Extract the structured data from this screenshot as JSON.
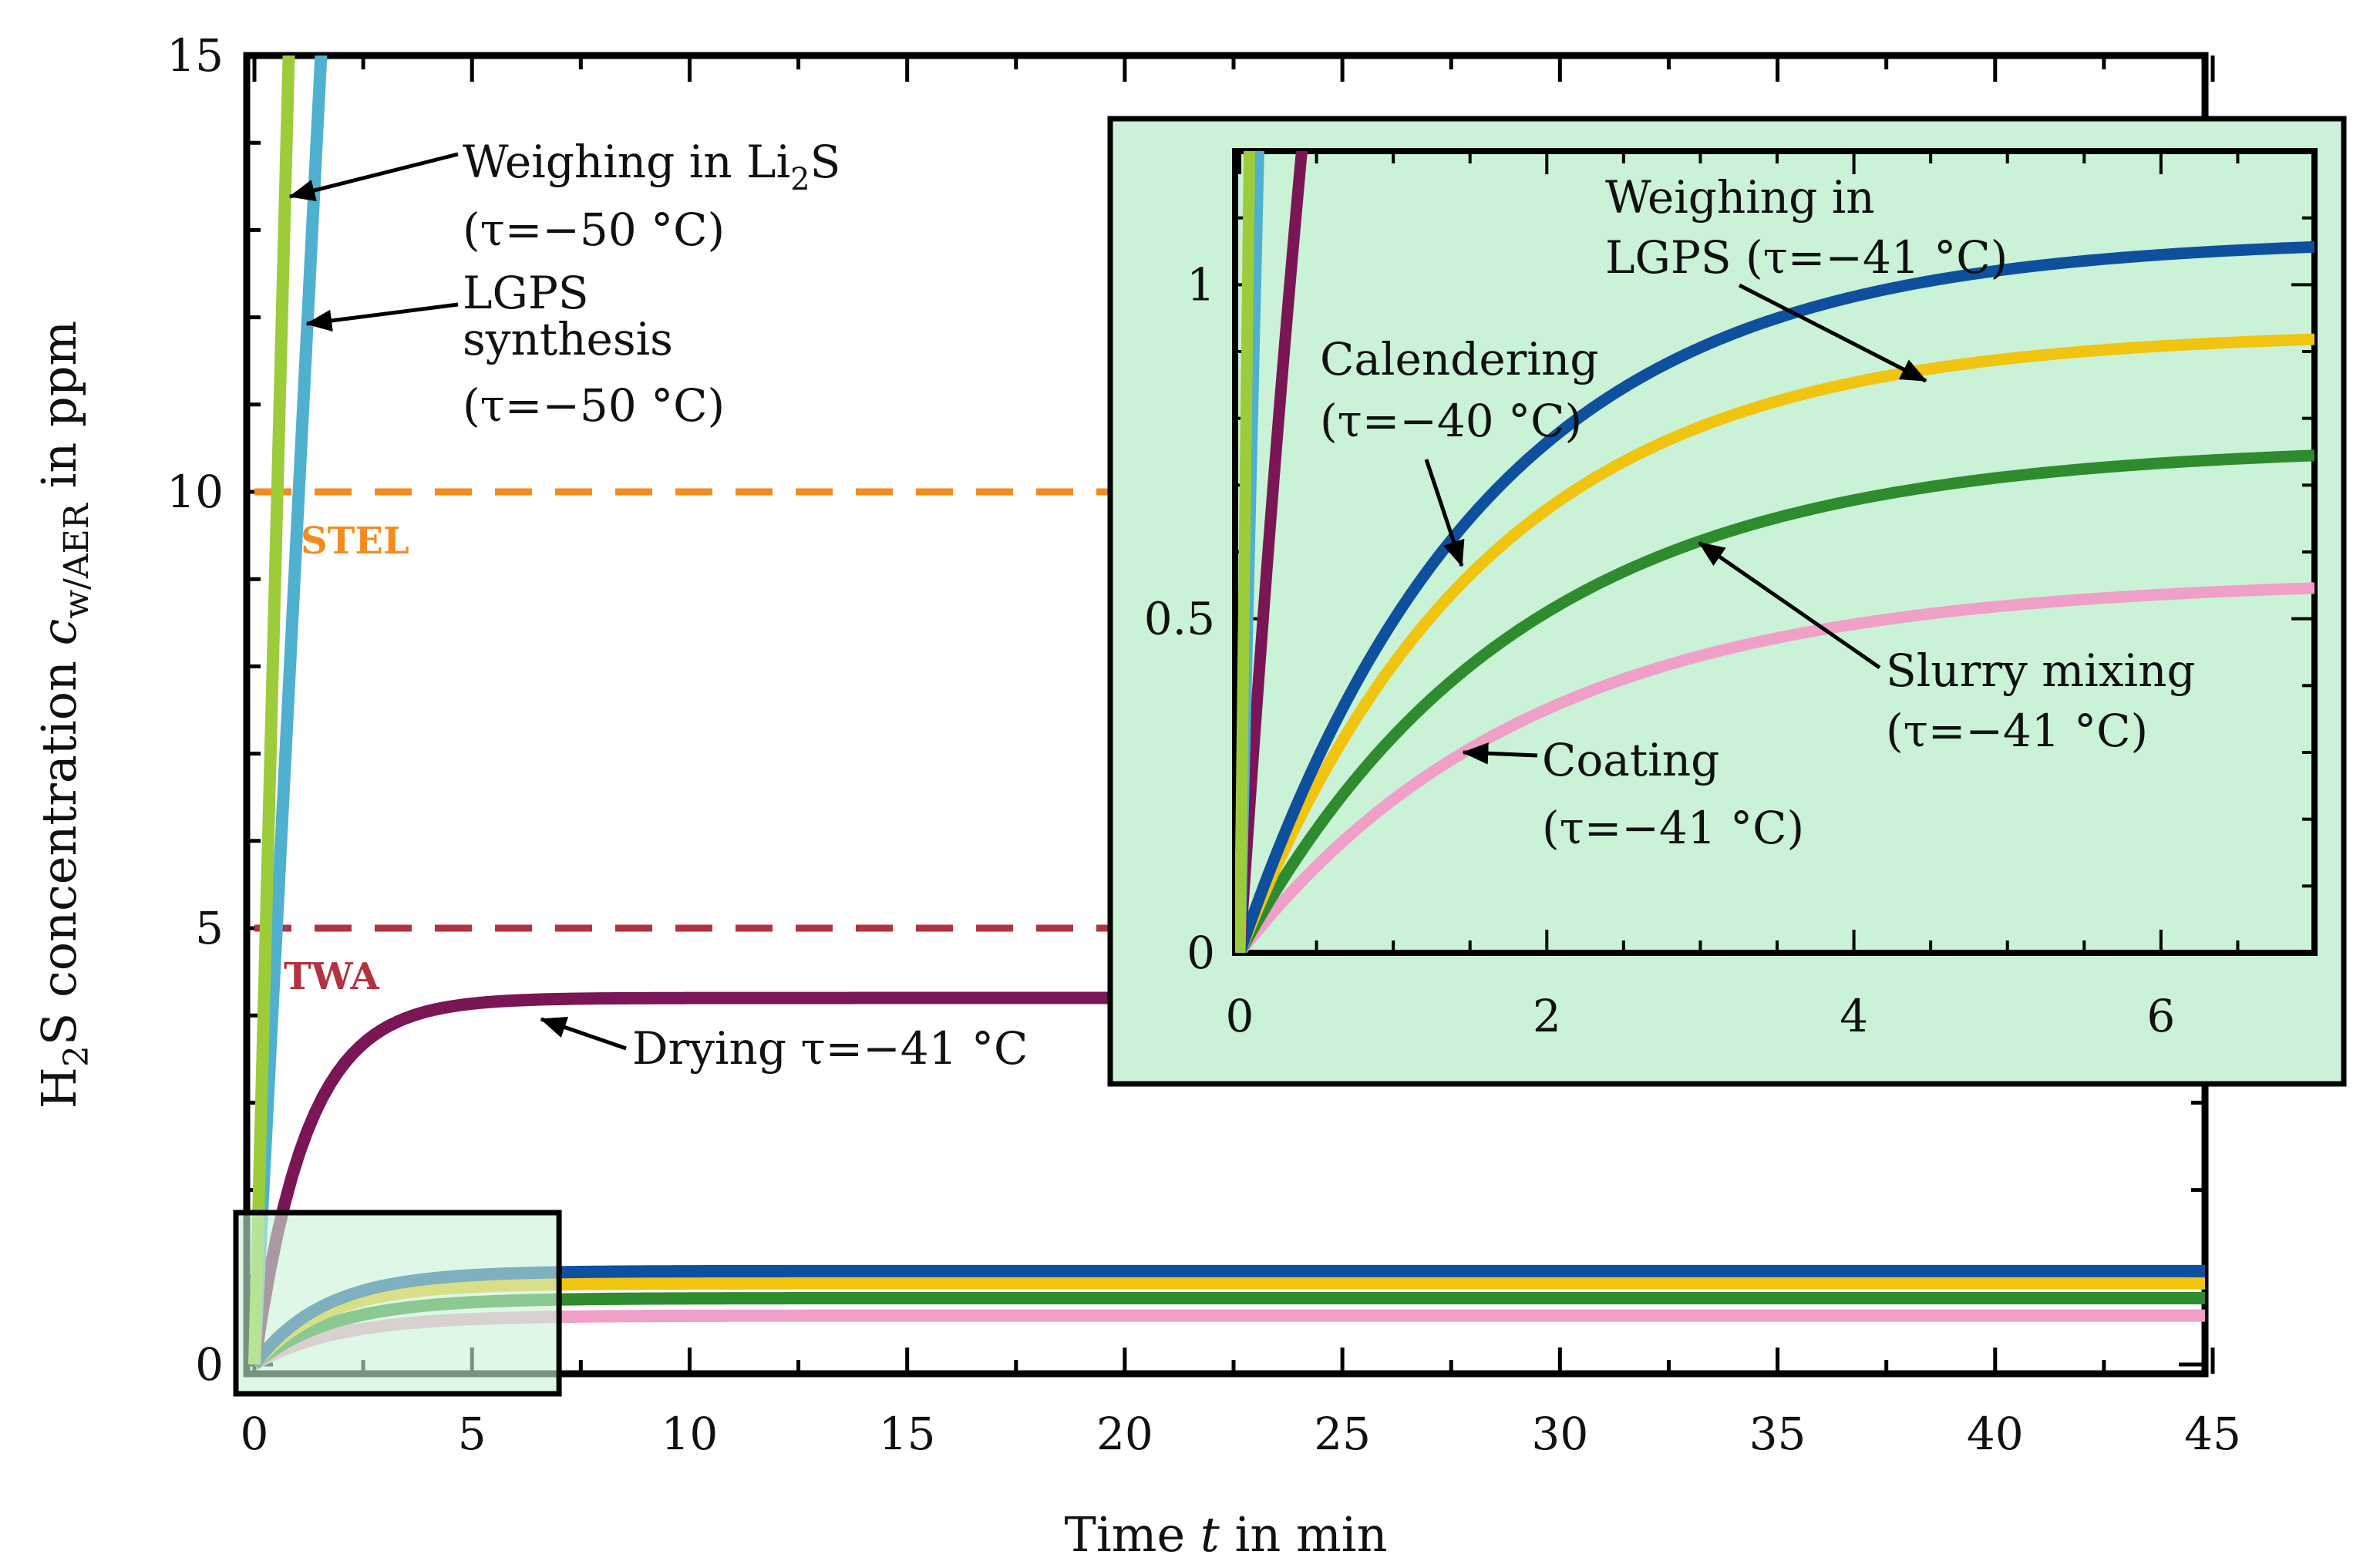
{
  "chart_data": [
    {
      "id": "main",
      "type": "line",
      "title": "",
      "xlabel": "Time t in min",
      "ylabel": "H2S concentration c w/AER in ppm",
      "ylabel_parts": {
        "prefix": "H",
        "sub1": "2",
        "mid": "S concentration ",
        "var": "c",
        "sub2": "w/AER",
        "suffix": " in ppm"
      },
      "xlabel_parts": {
        "prefix": "Time ",
        "var": "t",
        "suffix": " in min"
      },
      "xlim": [
        0,
        45
      ],
      "ylim": [
        0,
        15
      ],
      "xticks": [
        0,
        5,
        10,
        15,
        20,
        25,
        30,
        35,
        40,
        45
      ],
      "yticks": [
        0,
        5,
        10,
        15
      ],
      "reference_lines": [
        {
          "name": "STEL",
          "label": "STEL",
          "y": 10,
          "color": "#f28c1e"
        },
        {
          "name": "TWA",
          "label": "TWA",
          "y": 5,
          "color": "#b3323f"
        }
      ],
      "series": [
        {
          "name": "Weighing in Li2S",
          "tau_c": -50,
          "model": "linear",
          "slope_ppm_per_min": 19.0,
          "color": "#9ccc3a"
        },
        {
          "name": "LGPS synthesis",
          "tau_c": -50,
          "model": "linear",
          "slope_ppm_per_min": 9.8,
          "color": "#4fb0cf"
        },
        {
          "name": "Drying",
          "tau_c": -41,
          "model": "saturating",
          "plateau": 4.2,
          "time_constant_min": 1.2,
          "color": "#7a1556"
        },
        {
          "name": "Weighing in LGPS",
          "tau_c": -41,
          "model": "saturating",
          "plateau": 1.07,
          "time_constant_min": 1.6,
          "color": "#0e4f9e"
        },
        {
          "name": "Calendering",
          "tau_c": -40,
          "model": "saturating",
          "plateau": 0.93,
          "time_constant_min": 1.6,
          "color": "#f1c40f"
        },
        {
          "name": "Slurry mixing",
          "tau_c": -41,
          "model": "saturating",
          "plateau": 0.76,
          "time_constant_min": 1.8,
          "color": "#2e8b2e"
        },
        {
          "name": "Coating",
          "tau_c": -41,
          "model": "saturating",
          "plateau": 0.56,
          "time_constant_min": 1.9,
          "color": "#f0a0c8"
        }
      ],
      "annotations": {
        "li2s_line1": "Weighing in Li",
        "li2s_sub": "2",
        "li2s_tail": "S",
        "li2s_line2": "(τ=−50 °C)",
        "lgps_line1": "LGPS",
        "lgps_line2": "synthesis",
        "lgps_line3": "(τ=−50 °C)",
        "drying": "Drying τ=−41 °C"
      }
    },
    {
      "id": "inset",
      "type": "line",
      "title": "",
      "xlim": [
        0,
        7
      ],
      "ylim": [
        0,
        1.2
      ],
      "xticks": [
        0,
        2,
        4,
        6
      ],
      "yticks": [
        0,
        0.5,
        1
      ],
      "ytick_labels": [
        "0",
        "0.5",
        "1"
      ],
      "background": "#c9f2d6",
      "annotations": {
        "weighing_lgps_line1": "Weighing in",
        "weighing_lgps_line2": "LGPS (τ=−41 °C)",
        "calendering_line1": "Calendering",
        "calendering_line2": "(τ=−40 °C)",
        "slurry_line1": "Slurry mixing",
        "slurry_line2": "(τ=−41 °C)",
        "coating_line1": "Coating",
        "coating_line2": "(τ=−41 °C)"
      }
    }
  ]
}
